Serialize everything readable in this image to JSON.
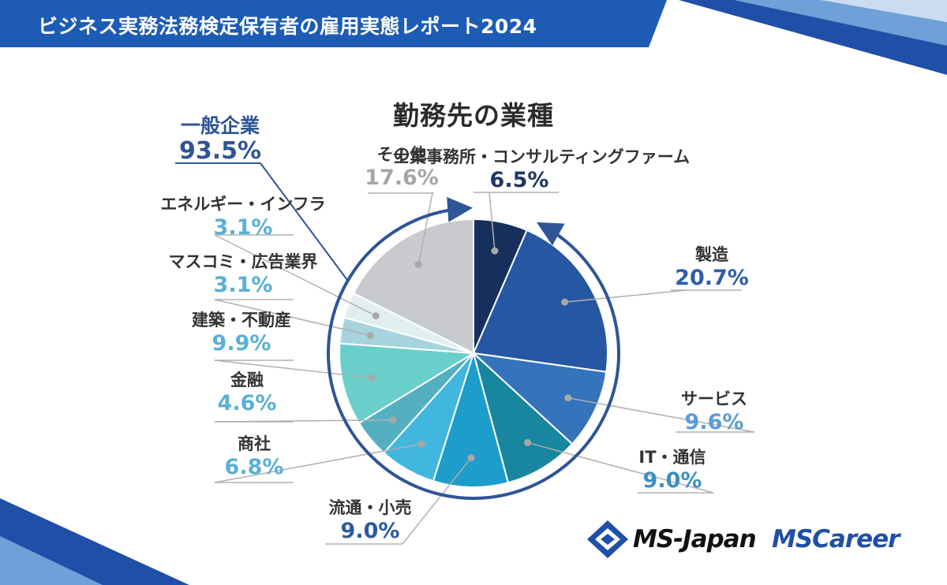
{
  "banner": {
    "title": "ビジネス実務法務検定保有者の雇用実態レポート2024"
  },
  "colors": {
    "banner_blue": "#1d5bb5",
    "accent_blue": "#2f5597",
    "label_dark": "#333333"
  },
  "summary": {
    "name": "一般企業",
    "value": "93.5%",
    "color": "#2f5597"
  },
  "logos": {
    "ms_japan": "MS-Japan",
    "ms_career": "MSCareer"
  },
  "chart_data": {
    "type": "pie",
    "title": "勤務先の業種",
    "start": "top",
    "direction": "clockwise",
    "slices": [
      {
        "name": "士業事務所・コンサルティングファーム",
        "value": 6.5,
        "label": "6.5%",
        "color": "#172f5c",
        "text_color": "#1f3864"
      },
      {
        "name": "製造",
        "value": 20.7,
        "label": "20.7%",
        "color": "#2657a2",
        "text_color": "#2e5fa8"
      },
      {
        "name": "サービス",
        "value": 9.6,
        "label": "9.6%",
        "color": "#3574bb",
        "text_color": "#5a9bd5"
      },
      {
        "name": "IT・通信",
        "value": 9.0,
        "label": "9.0%",
        "color": "#19869f",
        "text_color": "#3c8fc0"
      },
      {
        "name": "流通・小売",
        "value": 9.0,
        "label": "9.0%",
        "color": "#1d9dc9",
        "text_color": "#2a5aa0"
      },
      {
        "name": "商社",
        "value": 6.8,
        "label": "6.8%",
        "color": "#41b7e0",
        "text_color": "#5ab0d6"
      },
      {
        "name": "金融",
        "value": 4.6,
        "label": "4.6%",
        "color": "#54b0c0",
        "text_color": "#5ab0d6"
      },
      {
        "name": "建築・不動産",
        "value": 9.9,
        "label": "9.9%",
        "color": "#6acfcb",
        "text_color": "#5ab0d6"
      },
      {
        "name": "マスコミ・広告業界",
        "value": 3.1,
        "label": "3.1%",
        "color": "#a6d3dd",
        "text_color": "#5ab0d6"
      },
      {
        "name": "エネルギー・インフラ",
        "value": 3.1,
        "label": "3.1%",
        "color": "#e1eff1",
        "text_color": "#5ab0d6"
      },
      {
        "name": "その他",
        "value": 17.6,
        "label": "17.6%",
        "color": "#c8cacd",
        "text_color": "#a6a6a6"
      }
    ]
  }
}
